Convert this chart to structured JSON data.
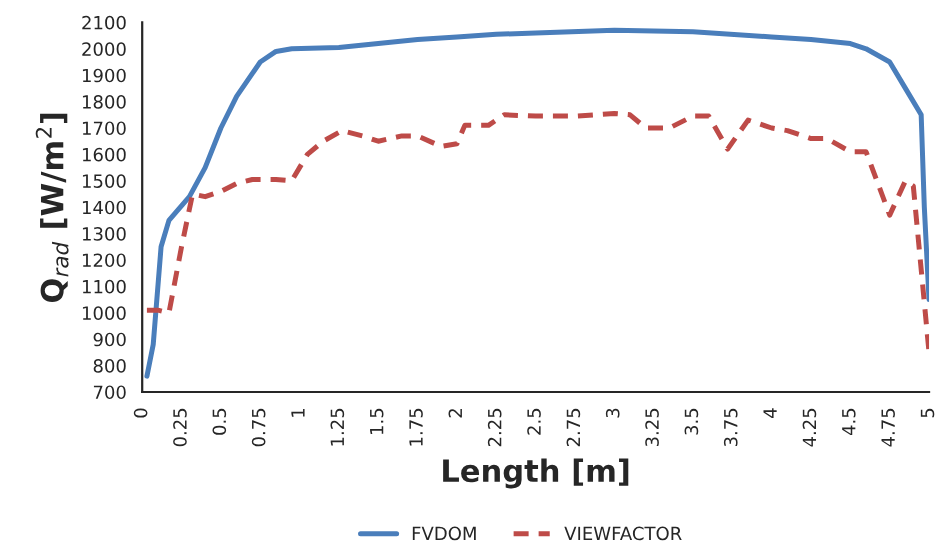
{
  "chart_data": {
    "type": "line",
    "xlabel": "Length [m]",
    "ylabel": "Q$_{rad}$ [W/m$^{2}$]",
    "xlim": [
      0,
      5
    ],
    "xticks": [
      0,
      0.25,
      0.5,
      0.75,
      1,
      1.25,
      1.5,
      1.75,
      2,
      2.25,
      2.5,
      2.75,
      3,
      3.25,
      3.5,
      3.75,
      4,
      4.25,
      4.5,
      4.75,
      5
    ],
    "ylim": [
      700,
      2100
    ],
    "yticks": [
      700,
      800,
      900,
      1000,
      1100,
      1200,
      1300,
      1400,
      1500,
      1600,
      1700,
      1800,
      1900,
      2000,
      2100
    ],
    "grid": false,
    "legend": "bottom",
    "series": [
      {
        "name": "FVDOM",
        "color": "#4a7ebb",
        "line_style": "solid",
        "x": [
          0.03,
          0.07,
          0.12,
          0.17,
          0.3,
          0.4,
          0.5,
          0.6,
          0.75,
          0.85,
          0.95,
          1.25,
          1.5,
          1.75,
          2,
          2.25,
          2.5,
          3,
          3.5,
          4,
          4.25,
          4.5,
          4.6,
          4.75,
          4.85,
          4.95,
          4.97,
          5
        ],
        "values": [
          760,
          880,
          1250,
          1350,
          1440,
          1550,
          1700,
          1820,
          1950,
          1990,
          2000,
          2005,
          2020,
          2035,
          2045,
          2055,
          2060,
          2070,
          2065,
          2045,
          2035,
          2020,
          2000,
          1950,
          1850,
          1750,
          1400,
          1050
        ]
      },
      {
        "name": "VIEWFACTOR",
        "color": "#be4b48",
        "line_style": "dashed",
        "x": [
          0.03,
          0.1,
          0.17,
          0.25,
          0.32,
          0.4,
          0.5,
          0.6,
          0.7,
          0.85,
          0.95,
          1.05,
          1.15,
          1.27,
          1.4,
          1.5,
          1.65,
          1.75,
          1.9,
          2,
          2.05,
          2.2,
          2.3,
          2.5,
          2.75,
          3,
          3.1,
          3.2,
          3.35,
          3.5,
          3.6,
          3.72,
          3.85,
          4,
          4.1,
          4.25,
          4.35,
          4.5,
          4.6,
          4.7,
          4.75,
          4.85,
          4.9,
          5
        ],
        "values": [
          1010,
          1010,
          1000,
          1250,
          1450,
          1440,
          1460,
          1490,
          1505,
          1505,
          1500,
          1600,
          1650,
          1690,
          1670,
          1650,
          1670,
          1670,
          1630,
          1640,
          1710,
          1710,
          1750,
          1745,
          1745,
          1755,
          1750,
          1700,
          1700,
          1745,
          1745,
          1620,
          1730,
          1700,
          1690,
          1660,
          1660,
          1610,
          1610,
          1450,
          1370,
          1500,
          1480,
          850
        ]
      }
    ]
  }
}
